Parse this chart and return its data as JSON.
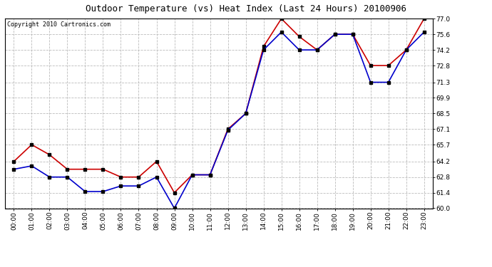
{
  "title": "Outdoor Temperature (vs) Heat Index (Last 24 Hours) 20100906",
  "copyright": "Copyright 2010 Cartronics.com",
  "hours": [
    "00:00",
    "01:00",
    "02:00",
    "03:00",
    "04:00",
    "05:00",
    "06:00",
    "07:00",
    "08:00",
    "09:00",
    "10:00",
    "11:00",
    "12:00",
    "13:00",
    "14:00",
    "15:00",
    "16:00",
    "17:00",
    "18:00",
    "19:00",
    "20:00",
    "21:00",
    "22:00",
    "23:00"
  ],
  "temp": [
    63.5,
    63.8,
    62.8,
    62.8,
    61.5,
    61.5,
    62.0,
    62.0,
    62.8,
    60.0,
    63.0,
    63.0,
    67.0,
    68.5,
    74.2,
    75.8,
    74.2,
    74.2,
    75.6,
    75.6,
    71.3,
    71.3,
    74.2,
    75.8
  ],
  "heat_index": [
    64.2,
    65.7,
    64.8,
    63.5,
    63.5,
    63.5,
    62.8,
    62.8,
    64.2,
    61.4,
    63.0,
    63.0,
    67.1,
    68.5,
    74.5,
    77.0,
    75.4,
    74.2,
    75.6,
    75.6,
    72.8,
    72.8,
    74.2,
    77.0
  ],
  "temp_color": "#0000cc",
  "heat_color": "#cc0000",
  "marker": "s",
  "marker_size": 2.5,
  "marker_color": "#000000",
  "ylim": [
    60.0,
    77.0
  ],
  "yticks": [
    60.0,
    61.4,
    62.8,
    64.2,
    65.7,
    67.1,
    68.5,
    69.9,
    71.3,
    72.8,
    74.2,
    75.6,
    77.0
  ],
  "bg_color": "#ffffff",
  "grid_color": "#bbbbbb",
  "title_fontsize": 9,
  "copyright_fontsize": 6,
  "tick_fontsize": 6.5,
  "line_width": 1.2
}
